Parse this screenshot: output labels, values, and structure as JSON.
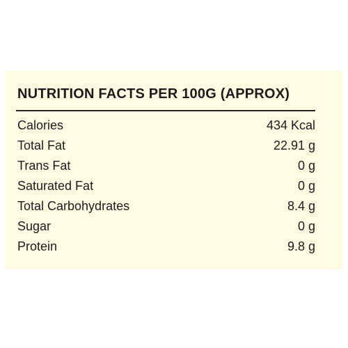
{
  "title": "NUTRITION FACTS PER 100G (APPROX)",
  "rows": [
    {
      "label": "Calories",
      "value": "434 Kcal"
    },
    {
      "label": "Total Fat",
      "value": "22.91 g"
    },
    {
      "label": "Trans Fat",
      "value": "0 g"
    },
    {
      "label": "Saturated Fat",
      "value": "0 g"
    },
    {
      "label": "Total Carbohydrates",
      "value": "8.4 g"
    },
    {
      "label": "Sugar",
      "value": "0 g"
    },
    {
      "label": "Protein",
      "value": "9.8 g"
    }
  ],
  "colors": {
    "panel_background": "#fefbe3",
    "text": "#1b1b1b",
    "page_background": "#ffffff"
  }
}
